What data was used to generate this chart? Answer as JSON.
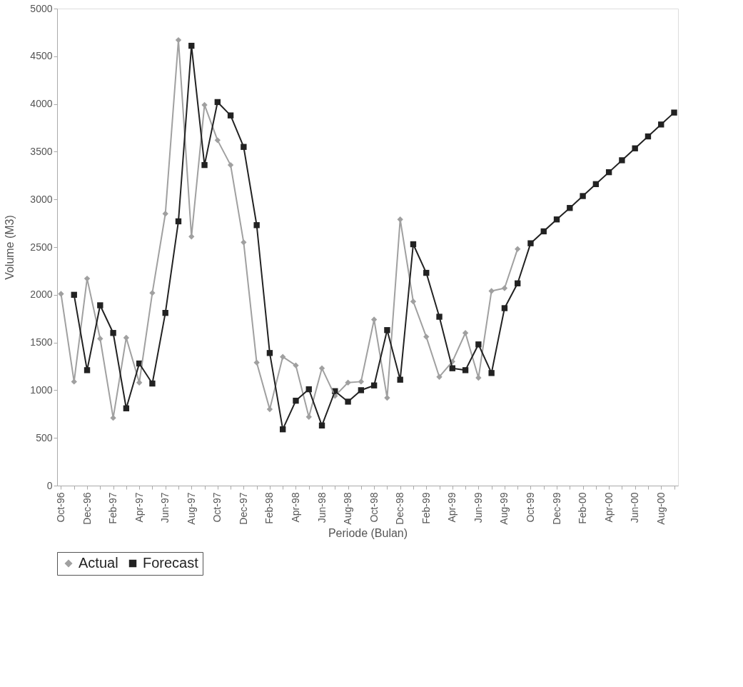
{
  "chart_data": {
    "type": "line",
    "xlabel": "Periode (Bulan)",
    "ylabel": "Volume (M3)",
    "categories": [
      "Oct-96",
      null,
      "Dec-96",
      null,
      "Feb-97",
      null,
      "Apr-97",
      null,
      "Jun-97",
      null,
      "Aug-97",
      null,
      "Oct-97",
      null,
      "Dec-97",
      null,
      "Feb-98",
      null,
      "Apr-98",
      null,
      "Jun-98",
      null,
      "Aug-98",
      null,
      "Oct-98",
      null,
      "Dec-98",
      null,
      "Feb-99",
      null,
      "Apr-99",
      null,
      "Jun-99",
      null,
      "Aug-99",
      null,
      "Oct-99",
      null,
      "Dec-99",
      null,
      "Feb-00",
      null,
      "Apr-00",
      null,
      "Jun-00",
      null,
      "Aug-00",
      null
    ],
    "series": [
      {
        "name": "Actual",
        "color": "#a0a0a0",
        "marker": "diamond",
        "values": [
          2010,
          1090,
          2170,
          1540,
          710,
          1550,
          1080,
          2020,
          2850,
          4670,
          2610,
          3990,
          3620,
          3360,
          2550,
          1290,
          800,
          1350,
          1260,
          720,
          1230,
          940,
          1080,
          1090,
          1740,
          920,
          2790,
          1930,
          1560,
          1140,
          1300,
          1600,
          1130,
          2040,
          2070,
          2480,
          null,
          null,
          null,
          null,
          null,
          null,
          null,
          null,
          null,
          null,
          null,
          null
        ]
      },
      {
        "name": "Forecast",
        "color": "#222222",
        "marker": "square",
        "values": [
          null,
          2000,
          1210,
          1890,
          1600,
          810,
          1280,
          1070,
          1810,
          2770,
          4610,
          3360,
          4020,
          3880,
          3550,
          2730,
          1390,
          590,
          890,
          1010,
          630,
          990,
          880,
          1000,
          1050,
          1630,
          1110,
          2530,
          2230,
          1770,
          1230,
          1210,
          1480,
          1180,
          1860,
          2120,
          2540,
          2665,
          2790,
          2910,
          3035,
          3160,
          3285,
          3410,
          3535,
          3660,
          3785,
          3910
        ]
      }
    ],
    "ylim": [
      0,
      5000
    ],
    "yticks": [
      0,
      500,
      1000,
      1500,
      2000,
      2500,
      3000,
      3500,
      4000,
      4500,
      5000
    ],
    "grid": false,
    "legend": "bottom",
    "line_style": "solid"
  }
}
